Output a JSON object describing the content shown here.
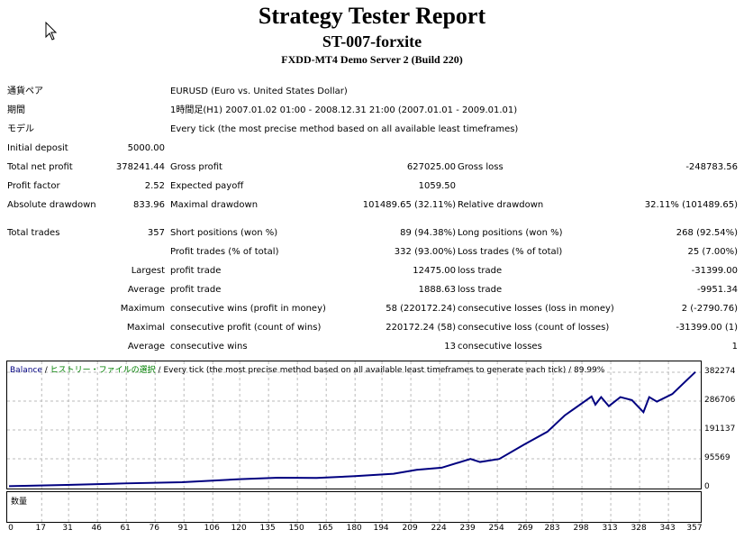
{
  "header": {
    "title": "Strategy Tester Report",
    "expert": "ST-007-forxite",
    "server": "FXDD-MT4 Demo Server 2 (Build 220)"
  },
  "info": [
    {
      "label": "通貨ペア",
      "value": "EURUSD (Euro vs. United States Dollar)"
    },
    {
      "label": "期間",
      "value": "1時間足(H1) 2007.01.02 01:00 - 2008.12.31 21:00 (2007.01.01 - 2009.01.01)"
    },
    {
      "label": "モデル",
      "value": "Every tick (the most precise method based on all available least timeframes)"
    }
  ],
  "stats": [
    [
      "Initial deposit",
      "5000.00",
      "",
      "",
      "",
      ""
    ],
    [
      "Total net profit",
      "378241.44",
      "Gross profit",
      "627025.00",
      "Gross loss",
      "-248783.56"
    ],
    [
      "Profit factor",
      "2.52",
      "Expected payoff",
      "1059.50",
      "",
      ""
    ],
    [
      "Absolute drawdown",
      "833.96",
      "Maximal drawdown",
      "101489.65 (32.11%)",
      "Relative drawdown",
      "32.11% (101489.65)"
    ]
  ],
  "trades": [
    [
      "Total trades",
      "357",
      "Short positions (won %)",
      "89 (94.38%)",
      "Long positions (won %)",
      "268 (92.54%)"
    ],
    [
      "",
      "",
      "Profit trades (% of total)",
      "332 (93.00%)",
      "Loss trades (% of total)",
      "25 (7.00%)"
    ],
    [
      "",
      "Largest",
      "profit trade",
      "12475.00",
      "loss trade",
      "-31399.00"
    ],
    [
      "",
      "Average",
      "profit trade",
      "1888.63",
      "loss trade",
      "-9951.34"
    ],
    [
      "",
      "Maximum",
      "consecutive wins (profit in money)",
      "58 (220172.24)",
      "consecutive losses (loss in money)",
      "2 (-2790.76)"
    ],
    [
      "",
      "Maximal",
      "consecutive profit (count of wins)",
      "220172.24 (58)",
      "consecutive loss (count of losses)",
      "-31399.00 (1)"
    ],
    [
      "",
      "Average",
      "consecutive wins",
      "13",
      "consecutive losses",
      "1"
    ]
  ],
  "chart_data": {
    "type": "line",
    "legend": {
      "series": "Balance",
      "sep1": " / ",
      "source": "ヒストリー・ファイルの選択",
      "rest": " / Every tick (the most precise method based on all available least timeframes to generate each tick) / 89.99%"
    },
    "volume_label": "数量",
    "yticks": [
      382274,
      286706,
      191137,
      95569,
      0
    ],
    "xticks": [
      0,
      17,
      31,
      46,
      61,
      76,
      91,
      106,
      120,
      135,
      150,
      165,
      180,
      194,
      209,
      224,
      239,
      254,
      269,
      283,
      298,
      313,
      328,
      343,
      357
    ],
    "xlim": [
      0,
      357
    ],
    "ylim": [
      0,
      382274
    ],
    "series": [
      {
        "name": "Balance",
        "color": "#000080",
        "points": [
          [
            0,
            5000
          ],
          [
            30,
            9000
          ],
          [
            60,
            14000
          ],
          [
            90,
            18000
          ],
          [
            120,
            28000
          ],
          [
            140,
            33000
          ],
          [
            160,
            32000
          ],
          [
            180,
            38000
          ],
          [
            200,
            46000
          ],
          [
            212,
            59000
          ],
          [
            225,
            66000
          ],
          [
            240,
            95000
          ],
          [
            245,
            85000
          ],
          [
            255,
            95000
          ],
          [
            268,
            143000
          ],
          [
            280,
            185000
          ],
          [
            289,
            239000
          ],
          [
            303,
            302000
          ],
          [
            305,
            275000
          ],
          [
            308,
            300000
          ],
          [
            312,
            270000
          ],
          [
            318,
            300000
          ],
          [
            324,
            290000
          ],
          [
            330,
            250000
          ],
          [
            333,
            300000
          ],
          [
            337,
            285000
          ],
          [
            345,
            310000
          ],
          [
            357,
            383241
          ]
        ]
      }
    ]
  },
  "colors": {
    "balance": "#000080",
    "source": "#008000",
    "grid": "#a0a0a0"
  }
}
